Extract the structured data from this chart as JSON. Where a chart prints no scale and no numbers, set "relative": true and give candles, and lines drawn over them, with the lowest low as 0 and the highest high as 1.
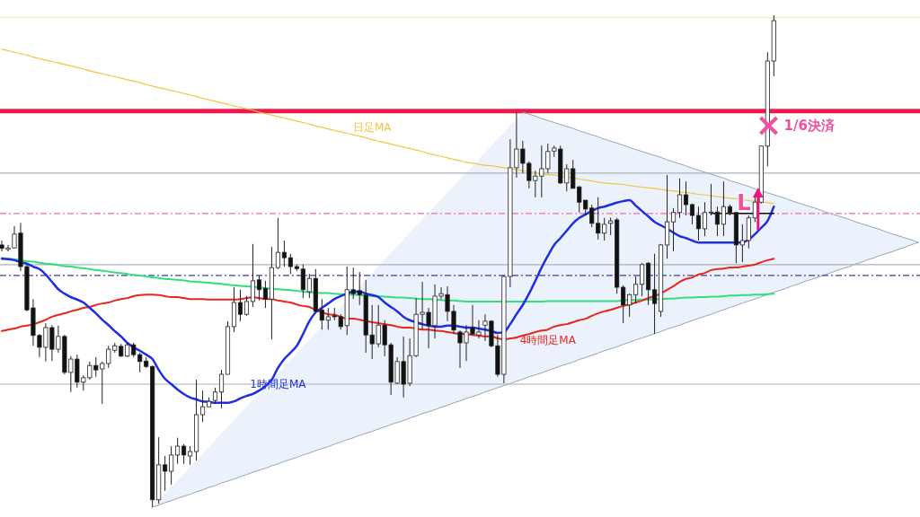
{
  "chart_data": {
    "type": "candlestick",
    "relative": true,
    "categories": [
      null,
      null,
      null,
      null,
      null,
      null,
      null,
      null,
      null,
      null,
      null,
      null,
      null,
      null,
      null,
      null,
      null,
      null,
      null,
      null,
      null,
      null,
      null,
      null,
      null,
      null,
      null,
      null,
      null,
      null,
      null,
      null,
      null,
      null,
      null,
      null,
      null,
      null,
      null,
      null,
      null,
      null,
      null,
      null,
      null,
      null,
      null,
      null,
      null,
      null,
      null,
      null,
      null,
      null,
      null,
      null,
      null,
      null,
      null,
      null,
      null,
      null,
      null,
      null,
      null,
      null,
      null,
      null,
      null,
      null,
      null,
      null,
      null,
      null,
      null,
      null,
      null,
      null,
      null,
      null,
      null,
      null,
      null,
      null,
      null,
      null,
      null,
      null,
      null,
      null,
      null,
      null,
      null,
      null,
      null,
      null,
      null,
      null,
      null,
      null,
      null,
      null,
      null,
      null,
      null,
      null,
      null,
      null,
      null,
      null,
      null,
      null,
      null,
      null,
      null,
      null,
      null,
      null,
      null,
      null,
      null,
      null,
      null,
      null,
      null,
      null,
      null,
      null,
      null,
      null,
      null,
      null,
      null,
      null,
      null,
      null,
      null,
      null,
      null,
      null,
      null,
      null,
      null,
      null,
      null,
      null,
      null
    ],
    "ohlc": [
      [
        0.533,
        0.542,
        0.52,
        0.526
      ],
      [
        0.524,
        0.533,
        0.52,
        0.527
      ],
      [
        0.527,
        0.571,
        0.526,
        0.555
      ],
      [
        0.557,
        0.578,
        0.48,
        0.489
      ],
      [
        0.489,
        0.493,
        0.398,
        0.401
      ],
      [
        0.405,
        0.423,
        0.328,
        0.349
      ],
      [
        0.349,
        0.352,
        0.305,
        0.325
      ],
      [
        0.325,
        0.374,
        0.296,
        0.365
      ],
      [
        0.365,
        0.37,
        0.297,
        0.321
      ],
      [
        0.321,
        0.369,
        0.314,
        0.347
      ],
      [
        0.347,
        0.35,
        0.27,
        0.274
      ],
      [
        0.274,
        0.307,
        0.234,
        0.301
      ],
      [
        0.301,
        0.31,
        0.243,
        0.254
      ],
      [
        0.254,
        0.268,
        0.237,
        0.263
      ],
      [
        0.263,
        0.296,
        0.259,
        0.288
      ],
      [
        0.288,
        0.305,
        0.265,
        0.279
      ],
      [
        0.281,
        0.296,
        0.21,
        0.292
      ],
      [
        0.292,
        0.328,
        0.283,
        0.321
      ],
      [
        0.319,
        0.334,
        0.314,
        0.328
      ],
      [
        0.327,
        0.332,
        0.305,
        0.307
      ],
      [
        0.307,
        0.334,
        0.305,
        0.33
      ],
      [
        0.33,
        0.334,
        0.305,
        0.31
      ],
      [
        0.31,
        0.314,
        0.274,
        0.296
      ],
      [
        0.297,
        0.305,
        0.283,
        0.286
      ],
      [
        0.286,
        0.288,
        0,
        0.015
      ],
      [
        0.015,
        0.142,
        0.007,
        0.086
      ],
      [
        0.086,
        0.104,
        0.033,
        0.073
      ],
      [
        0.073,
        0.124,
        0.046,
        0.106
      ],
      [
        0.106,
        0.141,
        0.088,
        0.124
      ],
      [
        0.124,
        0.128,
        0.088,
        0.106
      ],
      [
        0.104,
        0.124,
        0.086,
        0.113
      ],
      [
        0.113,
        0.259,
        0.095,
        0.188
      ],
      [
        0.188,
        0.237,
        0.173,
        0.204
      ],
      [
        0.204,
        0.223,
        0.204,
        0.215
      ],
      [
        0.217,
        0.243,
        0.21,
        0.234
      ],
      [
        0.234,
        0.279,
        0.201,
        0.27
      ],
      [
        0.27,
        0.378,
        0.27,
        0.367
      ],
      [
        0.367,
        0.447,
        0.356,
        0.416
      ],
      [
        0.416,
        0.442,
        0.378,
        0.392
      ],
      [
        0.392,
        0.429,
        0.389,
        0.418
      ],
      [
        0.418,
        0.535,
        0.407,
        0.46
      ],
      [
        0.462,
        0.471,
        0.42,
        0.442
      ],
      [
        0.445,
        0.46,
        0.405,
        0.423
      ],
      [
        0.423,
        0.529,
        0.341,
        0.487
      ],
      [
        0.487,
        0.588,
        0.484,
        0.518
      ],
      [
        0.518,
        0.542,
        0.489,
        0.507
      ],
      [
        0.507,
        0.515,
        0.474,
        0.489
      ],
      [
        0.489,
        0.493,
        0.48,
        0.485
      ],
      [
        0.484,
        0.493,
        0.425,
        0.442
      ],
      [
        0.438,
        0.474,
        0.425,
        0.465
      ],
      [
        0.465,
        0.484,
        0.396,
        0.398
      ],
      [
        0.401,
        0.423,
        0.361,
        0.38
      ],
      [
        0.38,
        0.405,
        0.361,
        0.387
      ],
      [
        0.389,
        0.405,
        0.38,
        0.387
      ],
      [
        0.387,
        0.392,
        0.361,
        0.367
      ],
      [
        0.369,
        0.489,
        0.35,
        0.442
      ],
      [
        0.442,
        0.487,
        0.423,
        0.434
      ],
      [
        0.44,
        0.478,
        0.411,
        0.432
      ],
      [
        0.431,
        0.462,
        0.314,
        0.35
      ],
      [
        0.35,
        0.411,
        0.301,
        0.332
      ],
      [
        0.332,
        0.411,
        0.325,
        0.37
      ],
      [
        0.37,
        0.38,
        0.307,
        0.33
      ],
      [
        0.33,
        0.334,
        0.228,
        0.254
      ],
      [
        0.252,
        0.305,
        0.25,
        0.296
      ],
      [
        0.296,
        0.347,
        0.223,
        0.25
      ],
      [
        0.252,
        0.343,
        0.246,
        0.308
      ],
      [
        0.308,
        0.425,
        0.305,
        0.392
      ],
      [
        0.392,
        0.458,
        0.361,
        0.396
      ],
      [
        0.396,
        0.405,
        0.323,
        0.369
      ],
      [
        0.369,
        0.453,
        0.343,
        0.429
      ],
      [
        0.429,
        0.447,
        0.423,
        0.434
      ],
      [
        0.432,
        0.449,
        0.378,
        0.398
      ],
      [
        0.398,
        0.411,
        0.352,
        0.36
      ],
      [
        0.356,
        0.359,
        0.283,
        0.334
      ],
      [
        0.334,
        0.37,
        0.297,
        0.356
      ],
      [
        0.365,
        0.411,
        0.35,
        0.352
      ],
      [
        0.35,
        0.38,
        0.343,
        0.356
      ],
      [
        0.37,
        0.392,
        0.338,
        0.378
      ],
      [
        0.378,
        0.38,
        0.325,
        0.328
      ],
      [
        0.328,
        0.35,
        0.265,
        0.27
      ],
      [
        0.27,
        0.471,
        0.252,
        0.469
      ],
      [
        0.469,
        0.748,
        0.447,
        0.69
      ],
      [
        0.69,
        0.803,
        0.67,
        0.728
      ],
      [
        0.728,
        0.745,
        0.679,
        0.699
      ],
      [
        0.699,
        0.703,
        0.648,
        0.664
      ],
      [
        0.664,
        0.684,
        0.63,
        0.673
      ],
      [
        0.673,
        0.735,
        0.63,
        0.688
      ],
      [
        0.688,
        0.739,
        0.679,
        0.723
      ],
      [
        0.724,
        0.735,
        0.712,
        0.73
      ],
      [
        0.728,
        0.735,
        0.657,
        0.659
      ],
      [
        0.659,
        0.697,
        0.642,
        0.688
      ],
      [
        0.688,
        0.706,
        0.648,
        0.648
      ],
      [
        0.651,
        0.653,
        0.599,
        0.62
      ],
      [
        0.624,
        0.624,
        0.593,
        0.606
      ],
      [
        0.608,
        0.615,
        0.569,
        0.577
      ],
      [
        0.577,
        0.63,
        0.544,
        0.557
      ],
      [
        0.557,
        0.588,
        0.542,
        0.575
      ],
      [
        0.577,
        0.589,
        0.553,
        0.582
      ],
      [
        0.584,
        0.588,
        0.434,
        0.447
      ],
      [
        0.447,
        0.451,
        0.374,
        0.411
      ],
      [
        0.411,
        0.434,
        0.387,
        0.432
      ],
      [
        0.432,
        0.469,
        0.414,
        0.453
      ],
      [
        0.453,
        0.496,
        0.429,
        0.493
      ],
      [
        0.496,
        0.498,
        0.411,
        0.442
      ],
      [
        0.442,
        0.515,
        0.352,
        0.414
      ],
      [
        0.398,
        0.535,
        0.387,
        0.533
      ],
      [
        0.533,
        0.675,
        0.505,
        0.58
      ],
      [
        0.58,
        0.608,
        0.52,
        0.599
      ],
      [
        0.599,
        0.668,
        0.588,
        0.635
      ],
      [
        0.635,
        0.662,
        0.593,
        0.615
      ],
      [
        0.615,
        0.617,
        0.575,
        0.593
      ],
      [
        0.593,
        0.611,
        0.542,
        0.566
      ],
      [
        0.566,
        0.62,
        0.551,
        0.599
      ],
      [
        0.599,
        0.657,
        0.593,
        0.6
      ],
      [
        0.6,
        0.611,
        0.551,
        0.575
      ],
      [
        0.575,
        0.662,
        0.551,
        0.611
      ],
      [
        0.611,
        0.615,
        0.593,
        0.599
      ],
      [
        0.599,
        0.599,
        0.496,
        0.533
      ],
      [
        0.533,
        0.575,
        0.498,
        0.542
      ],
      [
        0.542,
        0.593,
        0.526,
        0.588
      ],
      [
        0.588,
        0.635,
        0.58,
        0.62
      ],
      [
        0.62,
        0.735,
        0.617,
        0.734
      ],
      [
        0.734,
        0.925,
        0.693,
        0.907
      ],
      [
        0.907,
        1,
        0.876,
        0.989
      ],
      null,
      null,
      null,
      null,
      null,
      null,
      null,
      null,
      null,
      null,
      null,
      null,
      null,
      null,
      null,
      null,
      null,
      null,
      null,
      null,
      null,
      null,
      null
    ],
    "series": [
      {
        "type": "line",
        "name": "日足MA",
        "color": "#f2c53d",
        "values": [
          0.931,
          0.928,
          0.925,
          0.922,
          0.919,
          0.915,
          0.912,
          0.909,
          0.906,
          0.903,
          0.9,
          0.897,
          0.894,
          0.891,
          0.887,
          0.884,
          0.881,
          0.878,
          0.875,
          0.872,
          0.869,
          0.866,
          0.863,
          0.859,
          0.856,
          0.853,
          0.85,
          0.847,
          0.844,
          0.841,
          0.838,
          0.835,
          0.831,
          0.828,
          0.825,
          0.822,
          0.819,
          0.816,
          0.813,
          0.81,
          0.807,
          0.803,
          0.8,
          0.797,
          0.794,
          0.791,
          0.788,
          0.785,
          0.782,
          0.779,
          0.775,
          0.772,
          0.769,
          0.766,
          0.763,
          0.76,
          0.757,
          0.754,
          0.751,
          0.747,
          0.744,
          0.741,
          0.738,
          0.735,
          0.732,
          0.729,
          0.726,
          0.723,
          0.719,
          0.716,
          0.713,
          0.71,
          0.707,
          0.704,
          0.701,
          0.699,
          0.697,
          0.695,
          0.694,
          0.692,
          0.69,
          0.688,
          0.686,
          0.684,
          0.682,
          0.68,
          0.678,
          0.676,
          0.675,
          0.673,
          0.671,
          0.669,
          0.667,
          0.665,
          0.663,
          0.661,
          0.659,
          0.658,
          0.657,
          0.656,
          0.654,
          0.652,
          0.651,
          0.649,
          0.648,
          0.646,
          0.644,
          0.643,
          0.641,
          0.64,
          0.638,
          0.636,
          0.635,
          0.633,
          0.631,
          0.63,
          0.628,
          0.627,
          0.625,
          0.623,
          0.622,
          0.62,
          0.619,
          0.617,
          null,
          null,
          null,
          null,
          null,
          null,
          null,
          null,
          null,
          null,
          null,
          null,
          null,
          null,
          null,
          null,
          null,
          null,
          null,
          null,
          null,
          null,
          null
        ]
      },
      {
        "type": "line",
        "color": "#2fe07a",
        "values": [
          0.507,
          0.505,
          0.504,
          0.502,
          0.5,
          0.499,
          0.497,
          0.495,
          0.494,
          0.492,
          0.49,
          0.489,
          0.487,
          0.486,
          0.484,
          0.482,
          0.481,
          0.479,
          0.477,
          0.476,
          0.474,
          0.472,
          0.471,
          0.469,
          0.467,
          0.466,
          0.464,
          0.463,
          0.462,
          0.461,
          0.459,
          0.458,
          0.457,
          0.456,
          0.455,
          0.454,
          0.452,
          0.451,
          0.45,
          0.449,
          0.448,
          0.447,
          0.445,
          0.444,
          0.443,
          0.442,
          0.441,
          0.44,
          0.438,
          0.437,
          0.436,
          0.435,
          0.435,
          0.434,
          0.433,
          0.432,
          0.432,
          0.431,
          0.43,
          0.429,
          0.429,
          0.428,
          0.427,
          0.426,
          0.426,
          0.425,
          0.424,
          0.423,
          0.423,
          0.422,
          0.421,
          0.42,
          0.42,
          0.419,
          0.418,
          0.418,
          0.418,
          0.418,
          0.418,
          0.418,
          0.418,
          0.418,
          0.418,
          0.418,
          0.418,
          0.418,
          0.418,
          0.419,
          0.419,
          0.419,
          0.419,
          0.419,
          0.419,
          0.419,
          0.419,
          0.419,
          0.419,
          0.419,
          0.419,
          0.42,
          0.421,
          0.421,
          0.422,
          0.422,
          0.423,
          0.423,
          0.424,
          0.424,
          0.425,
          0.426,
          0.426,
          0.427,
          0.427,
          0.428,
          0.428,
          0.429,
          0.43,
          0.43,
          0.431,
          0.431,
          0.432,
          0.432,
          0.433,
          0.434,
          null,
          null,
          null,
          null,
          null,
          null,
          null,
          null,
          null,
          null,
          null,
          null,
          null,
          null,
          null,
          null,
          null,
          null,
          null,
          null,
          null,
          null,
          null
        ]
      },
      {
        "type": "line",
        "name": "4時間足MA",
        "color": "#e8261c",
        "values": [
          0.358,
          0.361,
          0.363,
          0.367,
          0.369,
          0.372,
          0.376,
          0.381,
          0.387,
          0.391,
          0.394,
          0.398,
          0.401,
          0.405,
          0.407,
          0.411,
          0.414,
          0.416,
          0.42,
          0.423,
          0.425,
          0.429,
          0.431,
          0.432,
          0.432,
          0.431,
          0.429,
          0.427,
          0.427,
          0.425,
          0.423,
          0.423,
          0.423,
          0.422,
          0.422,
          0.422,
          0.422,
          0.422,
          0.423,
          0.425,
          0.427,
          0.425,
          0.423,
          0.423,
          0.42,
          0.418,
          0.416,
          0.412,
          0.409,
          0.407,
          0.401,
          0.396,
          0.392,
          0.391,
          0.387,
          0.383,
          0.383,
          0.381,
          0.378,
          0.376,
          0.374,
          0.372,
          0.37,
          0.367,
          0.365,
          0.365,
          0.363,
          0.361,
          0.361,
          0.359,
          0.358,
          0.356,
          0.354,
          0.352,
          0.352,
          0.35,
          0.349,
          0.347,
          0.347,
          0.343,
          0.341,
          0.343,
          0.345,
          0.349,
          0.352,
          0.356,
          0.359,
          0.361,
          0.367,
          0.37,
          0.372,
          0.376,
          0.38,
          0.383,
          0.389,
          0.394,
          0.398,
          0.401,
          0.405,
          0.409,
          0.412,
          0.416,
          0.42,
          0.425,
          0.429,
          0.434,
          0.442,
          0.449,
          0.458,
          0.464,
          0.467,
          0.473,
          0.476,
          0.482,
          0.484,
          0.485,
          0.487,
          0.487,
          0.489,
          0.491,
          0.493,
          0.498,
          0.502,
          0.505,
          null,
          null,
          null,
          null,
          null,
          null,
          null,
          null,
          null,
          null,
          null,
          null,
          null,
          null,
          null,
          null,
          null,
          null,
          null,
          null,
          null,
          null,
          null
        ]
      },
      {
        "type": "line",
        "name": "1時間足MA",
        "color": "#1f2ee0",
        "values": [
          0.505,
          0.504,
          0.502,
          0.498,
          0.495,
          0.489,
          0.484,
          0.473,
          0.458,
          0.443,
          0.434,
          0.427,
          0.422,
          0.416,
          0.405,
          0.394,
          0.381,
          0.37,
          0.358,
          0.347,
          0.334,
          0.325,
          0.318,
          0.31,
          0.301,
          0.279,
          0.261,
          0.25,
          0.239,
          0.23,
          0.223,
          0.219,
          0.215,
          0.214,
          0.212,
          0.212,
          0.212,
          0.215,
          0.221,
          0.226,
          0.23,
          0.237,
          0.246,
          0.259,
          0.283,
          0.301,
          0.314,
          0.328,
          0.352,
          0.378,
          0.396,
          0.405,
          0.414,
          0.423,
          0.429,
          0.434,
          0.438,
          0.438,
          0.434,
          0.431,
          0.427,
          0.416,
          0.407,
          0.398,
          0.387,
          0.38,
          0.376,
          0.372,
          0.369,
          0.367,
          0.367,
          0.369,
          0.369,
          0.367,
          0.365,
          0.365,
          0.363,
          0.361,
          0.358,
          0.354,
          0.356,
          0.372,
          0.392,
          0.411,
          0.434,
          0.46,
          0.487,
          0.511,
          0.533,
          0.547,
          0.562,
          0.577,
          0.588,
          0.595,
          0.602,
          0.608,
          0.611,
          0.615,
          0.619,
          0.622,
          0.624,
          0.613,
          0.602,
          0.591,
          0.58,
          0.573,
          0.566,
          0.558,
          0.551,
          0.547,
          0.542,
          0.538,
          0.538,
          0.538,
          0.538,
          0.538,
          0.538,
          0.538,
          0.538,
          0.544,
          0.555,
          0.568,
          0.582,
          0.611,
          null,
          null,
          null,
          null,
          null,
          null,
          null,
          null,
          null,
          null,
          null,
          null,
          null,
          null,
          null,
          null,
          null,
          null,
          null,
          null,
          null,
          null,
          null
        ]
      },
      {
        "type": "line",
        "color": "#98a4b4",
        "values": [
          null,
          null,
          null,
          null,
          null,
          null,
          null,
          null,
          null,
          null,
          null,
          null,
          null,
          null,
          null,
          null,
          null,
          null,
          null,
          null,
          null,
          null,
          null,
          null,
          0,
          0.004,
          0.009,
          0.013,
          0.018,
          0.022,
          0.026,
          0.031,
          0.035,
          0.04,
          0.044,
          0.049,
          0.053,
          0.057,
          0.062,
          0.066,
          0.071,
          0.075,
          0.079,
          0.084,
          0.088,
          0.093,
          0.097,
          0.101,
          0.106,
          0.11,
          0.115,
          0.119,
          0.123,
          0.128,
          0.132,
          0.137,
          0.141,
          0.146,
          0.15,
          0.154,
          0.159,
          0.163,
          0.168,
          0.172,
          0.176,
          0.181,
          0.185,
          0.19,
          0.194,
          0.198,
          0.203,
          0.207,
          0.212,
          0.216,
          0.221,
          0.225,
          0.229,
          0.234,
          0.238,
          0.243,
          0.247,
          0.251,
          0.256,
          0.26,
          0.265,
          0.269,
          0.273,
          0.278,
          0.282,
          0.287,
          0.291,
          0.295,
          0.3,
          0.304,
          0.309,
          0.313,
          0.318,
          0.322,
          0.326,
          0.331,
          0.335,
          0.34,
          0.344,
          0.348,
          0.353,
          0.357,
          0.362,
          0.366,
          0.37,
          0.375,
          0.379,
          0.384,
          0.388,
          0.392,
          0.397,
          0.401,
          0.406,
          0.41,
          0.415,
          0.419,
          0.423,
          0.428,
          0.432,
          0.437,
          0.441,
          0.445,
          0.45,
          0.454,
          0.459,
          0.463,
          0.467,
          0.472,
          0.476,
          0.481,
          0.485,
          0.489,
          0.494,
          0.498,
          0.503,
          0.507,
          0.512,
          0.516,
          0.52,
          0.525,
          0.529,
          0.534,
          0.538
        ],
        "lower": [
          null,
          null,
          null,
          null,
          null,
          null,
          null,
          null,
          null,
          null,
          null,
          null,
          null,
          null,
          null,
          null,
          null,
          null,
          null,
          null,
          null,
          null,
          null,
          null,
          0,
          0.004,
          0.009,
          0.013,
          0.018,
          0.022,
          0.026,
          0.031,
          0.035,
          0.04,
          0.044,
          0.049,
          0.053,
          0.057,
          0.062,
          0.066,
          0.071,
          0.075,
          0.079,
          0.084,
          0.088,
          0.093,
          0.097,
          0.101,
          0.106,
          0.11,
          0.115,
          0.119,
          0.123,
          0.128,
          0.132,
          0.137,
          0.141,
          0.146,
          0.15,
          0.154,
          0.159,
          0.163,
          0.168,
          0.172,
          0.176,
          0.181,
          0.185,
          0.19,
          0.194,
          0.198,
          0.203,
          0.207,
          0.212,
          0.216,
          0.221,
          0.225,
          0.229,
          0.234,
          0.238,
          0.243,
          0.247,
          0.251,
          0.256,
          0.26,
          0.265,
          0.269,
          0.273,
          0.278,
          0.282,
          0.287,
          0.291,
          0.295,
          0.3,
          0.304,
          0.309,
          0.313,
          0.318,
          0.322,
          0.326,
          0.331,
          0.335,
          0.34,
          0.344,
          0.348,
          0.353,
          0.357,
          0.362,
          0.366,
          0.37,
          0.375,
          0.379,
          0.384,
          0.388,
          0.392,
          0.397,
          0.401,
          0.406,
          0.41,
          0.415,
          0.419,
          0.423,
          0.428,
          0.432,
          0.437,
          0.441,
          0.445,
          0.45,
          0.454,
          0.459,
          0.463,
          0.467,
          0.472,
          0.476,
          0.481,
          0.485,
          0.489,
          0.494,
          0.498,
          0.503,
          0.507,
          0.512,
          0.516,
          0.52,
          0.525,
          0.529,
          0.534,
          0.538
        ],
        "upper": [
          null,
          null,
          null,
          null,
          null,
          null,
          null,
          null,
          null,
          null,
          null,
          null,
          null,
          null,
          null,
          null,
          null,
          null,
          null,
          null,
          null,
          null,
          null,
          null,
          0,
          0.014,
          0.027,
          0.041,
          0.054,
          0.068,
          0.082,
          0.095,
          0.109,
          0.122,
          0.136,
          0.15,
          0.163,
          0.177,
          0.191,
          0.204,
          0.218,
          0.231,
          0.245,
          0.259,
          0.272,
          0.286,
          0.299,
          0.313,
          0.327,
          0.34,
          0.354,
          0.367,
          0.381,
          0.395,
          0.408,
          0.422,
          0.436,
          0.449,
          0.463,
          0.476,
          0.49,
          0.504,
          0.517,
          0.531,
          0.544,
          0.558,
          0.572,
          0.585,
          0.599,
          0.612,
          0.626,
          0.64,
          0.653,
          0.667,
          0.681,
          0.694,
          0.708,
          0.721,
          0.735,
          0.749,
          0.762,
          0.776,
          0.789,
          0.803,
          0.799,
          0.795,
          0.79,
          0.786,
          0.782,
          0.778,
          0.774,
          0.77,
          0.765,
          0.761,
          0.757,
          0.753,
          0.748,
          0.744,
          0.74,
          0.736,
          0.731,
          0.727,
          0.723,
          0.719,
          0.715,
          0.711,
          0.706,
          0.702,
          0.698,
          0.694,
          0.689,
          0.685,
          0.681,
          0.677,
          0.673,
          0.669,
          0.664,
          0.66,
          0.656,
          0.652,
          0.647,
          0.643,
          0.639,
          0.635,
          0.631,
          0.627,
          0.622,
          0.618,
          0.614,
          0.61,
          0.606,
          0.601,
          0.597,
          0.593,
          0.589,
          0.585,
          0.58,
          0.576,
          0.572,
          0.568,
          0.564,
          0.559,
          0.555,
          0.551,
          0.547,
          0.543,
          0.538
        ]
      },
      {
        "type": "line",
        "color": "#98a4b4",
        "values": [
          null,
          null,
          null,
          null,
          null,
          null,
          null,
          null,
          null,
          null,
          null,
          null,
          null,
          null,
          null,
          null,
          null,
          null,
          null,
          null,
          null,
          null,
          null,
          null,
          null,
          null,
          null,
          null,
          null,
          null,
          null,
          null,
          null,
          null,
          null,
          null,
          null,
          null,
          null,
          null,
          null,
          null,
          null,
          null,
          null,
          null,
          null,
          null,
          null,
          null,
          null,
          null,
          null,
          null,
          null,
          null,
          null,
          null,
          null,
          null,
          null,
          null,
          null,
          null,
          null,
          null,
          null,
          null,
          null,
          null,
          null,
          null,
          null,
          null,
          null,
          null,
          null,
          null,
          null,
          null,
          null,
          null,
          null,
          0.803,
          0.799,
          0.795,
          0.79,
          0.786,
          0.782,
          0.778,
          0.774,
          0.77,
          0.765,
          0.761,
          0.757,
          0.753,
          0.748,
          0.744,
          0.74,
          0.736,
          0.731,
          0.727,
          0.723,
          0.719,
          0.715,
          0.711,
          0.706,
          0.702,
          0.698,
          0.694,
          0.689,
          0.685,
          0.681,
          0.677,
          0.673,
          0.669,
          0.664,
          0.66,
          0.656,
          0.652,
          0.647,
          0.643,
          0.639,
          0.635,
          0.631,
          0.627,
          0.622,
          0.618,
          0.614,
          0.61,
          0.606,
          0.601,
          0.597,
          0.593,
          0.589,
          0.585,
          0.58,
          0.576,
          0.572,
          0.568,
          0.564,
          0.559,
          0.555,
          0.551,
          0.547,
          0.543,
          0.538
        ]
      },
      {
        "type": "line",
        "color": "#111111",
        "values": [
          null,
          null,
          null,
          null,
          null,
          null,
          null,
          null,
          null,
          null,
          null,
          null,
          null,
          null,
          null,
          null,
          null,
          null,
          null,
          null,
          null,
          null,
          null,
          null,
          null,
          null,
          null,
          null,
          null,
          null,
          null,
          null,
          null,
          null,
          null,
          null,
          null,
          null,
          null,
          null,
          null,
          null,
          null,
          null,
          null,
          null,
          null,
          null,
          null,
          null,
          null,
          null,
          null,
          null,
          null,
          null,
          null,
          null,
          null,
          null,
          null,
          null,
          null,
          null,
          null,
          null,
          null,
          null,
          null,
          null,
          null,
          null,
          null,
          null,
          null,
          null,
          null,
          null,
          null,
          null,
          null,
          null,
          null,
          null,
          null,
          null,
          null,
          null,
          null,
          null,
          null,
          null,
          null,
          null,
          null,
          null,
          null,
          null,
          null,
          null,
          null,
          null,
          null,
          null,
          null,
          null,
          null,
          null,
          null,
          null,
          null,
          null,
          null,
          0.597,
          0.597,
          0.597,
          0.597,
          0.597,
          0.597,
          0.597,
          0.597,
          0.597,
          0.597,
          0.597,
          null,
          null,
          null,
          null,
          null,
          null,
          null,
          null,
          null,
          null,
          null,
          null,
          null,
          null,
          null,
          null,
          null,
          null,
          null,
          null,
          null,
          null,
          null
        ]
      }
    ],
    "ref_lines": [
      {
        "axis": "y",
        "value": 0.805,
        "color": "#f0194b"
      },
      {
        "axis": "y",
        "value": 0.995,
        "color": "#fbe3c0"
      },
      {
        "axis": "y",
        "value": 0.679,
        "color": "#a9b1bb"
      },
      {
        "axis": "y",
        "value": 0.493,
        "color": "#a9b1bb"
      },
      {
        "axis": "y",
        "value": 0.25,
        "color": "#a9b1bb"
      },
      {
        "axis": "y",
        "value": 0.597,
        "color": "#f06ab4",
        "line_style": "dashed"
      },
      {
        "axis": "y",
        "value": 0.471,
        "color": "#3a3ab0",
        "line_style": "dashed"
      }
    ],
    "annotations": [
      "1/6決済",
      "L"
    ]
  }
}
